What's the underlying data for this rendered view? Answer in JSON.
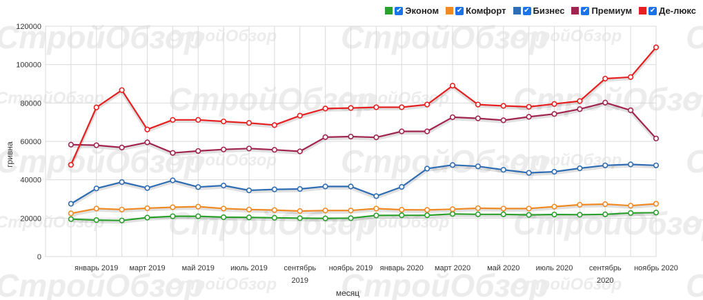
{
  "legend": [
    {
      "label": "Эконом",
      "color": "#2ca02c"
    },
    {
      "label": "Комфорт",
      "color": "#f08a24"
    },
    {
      "label": "Бизнес",
      "color": "#2e6db4"
    },
    {
      "label": "Премиум",
      "color": "#a0244f"
    },
    {
      "label": "Де-люкс",
      "color": "#e62020"
    }
  ],
  "watermark": "СтройОбзор",
  "chart_data": {
    "type": "line",
    "xlabel": "месяц",
    "ylabel": "гривна",
    "ylim": [
      0,
      120000
    ],
    "y_ticks": [
      "0",
      "20000",
      "40000",
      "60000",
      "80000",
      "100000",
      "120000"
    ],
    "x_labels": [
      {
        "index": 2,
        "label": "январь 2019"
      },
      {
        "index": 4,
        "label": "март 2019"
      },
      {
        "index": 6,
        "label": "май 2019"
      },
      {
        "index": 8,
        "label": "июль 2019"
      },
      {
        "index": 10,
        "label": "сентябрь"
      },
      {
        "index": 12,
        "label": "ноябрь 2019"
      },
      {
        "index": 14,
        "label": "январь 2020"
      },
      {
        "index": 16,
        "label": "март 2020"
      },
      {
        "index": 18,
        "label": "май 2020"
      },
      {
        "index": 20,
        "label": "июль 2020"
      },
      {
        "index": 22,
        "label": "сентябрь"
      },
      {
        "index": 24,
        "label": "ноябрь 2020"
      }
    ],
    "year_labels": [
      {
        "index": 10,
        "label": "2019"
      },
      {
        "index": 22,
        "label": "2020"
      }
    ],
    "grid": true,
    "legend_position": "top-right",
    "series": [
      {
        "name": "Эконом",
        "color": "#2ca02c",
        "values": [
          19500,
          19000,
          18800,
          20300,
          21000,
          21000,
          20500,
          20400,
          20200,
          20000,
          19900,
          20000,
          21400,
          21500,
          21500,
          22200,
          22000,
          22000,
          21700,
          21900,
          21800,
          22000,
          22700,
          22900
        ]
      },
      {
        "name": "Комфорт",
        "color": "#f08a24",
        "values": [
          22500,
          25000,
          24500,
          25200,
          25700,
          26000,
          25000,
          24500,
          24200,
          23700,
          24000,
          24000,
          25000,
          24400,
          24300,
          24700,
          25200,
          25000,
          25000,
          26000,
          27000,
          27300,
          26500,
          27500
        ]
      },
      {
        "name": "Бизнес",
        "color": "#2e6db4",
        "values": [
          27500,
          35500,
          38800,
          35700,
          39700,
          36200,
          37000,
          34500,
          35000,
          35200,
          36500,
          36500,
          31500,
          36300,
          45800,
          47700,
          47000,
          45200,
          43600,
          44200,
          46000,
          47500,
          48000,
          47500
        ]
      },
      {
        "name": "Премиум",
        "color": "#a0244f",
        "values": [
          58300,
          58000,
          56800,
          59500,
          54000,
          55000,
          55800,
          56300,
          55600,
          54800,
          62200,
          62500,
          62100,
          65200,
          65200,
          72600,
          72000,
          71000,
          72800,
          74300,
          76800,
          80200,
          76200,
          61500
        ]
      },
      {
        "name": "Де-люкс",
        "color": "#e62020",
        "values": [
          47800,
          77700,
          86700,
          66200,
          71200,
          71200,
          70400,
          69600,
          68500,
          73400,
          77100,
          77400,
          77800,
          77800,
          79200,
          89000,
          79200,
          78500,
          78000,
          79500,
          81000,
          92700,
          93500,
          109000
        ]
      }
    ]
  }
}
